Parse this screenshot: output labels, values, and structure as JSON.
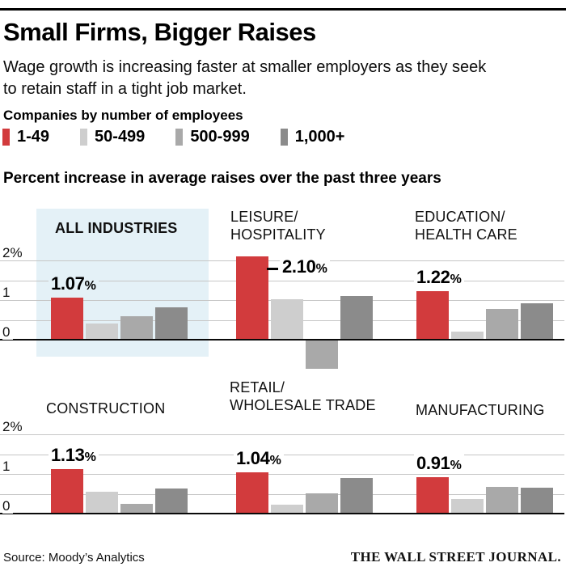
{
  "header": {
    "title": "Small Firms, Bigger Raises",
    "subtitle_line1": "Wage growth is increasing faster at smaller employers as they seek",
    "subtitle_line2": "to retain staff in a tight job market.",
    "legend_title": "Companies by number of employees",
    "axis_title": "Percent increase in average raises over the past three years"
  },
  "legend": [
    {
      "label": "1-49",
      "color": "#d23b3d"
    },
    {
      "label": "50-499",
      "color": "#cecece"
    },
    {
      "label": "500-999",
      "color": "#a9a9a9"
    },
    {
      "label": "1,000+",
      "color": "#8b8b8b"
    }
  ],
  "chart_data": {
    "type": "bar",
    "title": "Percent increase in average raises over the past three years",
    "categories": [
      "1-49",
      "50-499",
      "500-999",
      "1,000+"
    ],
    "series_colors": [
      "#d23b3d",
      "#cecece",
      "#a9a9a9",
      "#8b8b8b"
    ],
    "yticks": [
      "2%",
      "1",
      "0"
    ],
    "ytick_values": [
      2,
      1,
      0
    ],
    "gridline_values": [
      2,
      1.5,
      1,
      0.5,
      0
    ],
    "ylim": [
      -0.75,
      2.3
    ],
    "highlight_color": "#e4f1f7",
    "panels": [
      {
        "name_lines": [
          "ALL INDUSTRIES"
        ],
        "bold_label": true,
        "highlighted": true,
        "row": 0,
        "col": 0,
        "values": [
          1.07,
          0.41,
          0.6,
          0.82
        ],
        "callout": "1.07%",
        "callout_position": "above"
      },
      {
        "name_lines": [
          "LEISURE/",
          "HOSPITALITY"
        ],
        "row": 0,
        "col": 1,
        "values": [
          2.1,
          1.02,
          -0.71,
          1.1
        ],
        "callout": "2.10%",
        "callout_position": "right"
      },
      {
        "name_lines": [
          "EDUCATION/",
          "HEALTH CARE"
        ],
        "row": 0,
        "col": 2,
        "values": [
          1.22,
          0.2,
          0.77,
          0.92
        ],
        "callout": "1.22%",
        "callout_position": "above"
      },
      {
        "name_lines": [
          "CONSTRUCTION"
        ],
        "row": 1,
        "col": 0,
        "values": [
          1.13,
          0.56,
          0.24,
          0.64
        ],
        "callout": "1.13%",
        "callout_position": "above"
      },
      {
        "name_lines": [
          "RETAIL/",
          "WHOLESALE TRADE"
        ],
        "row": 1,
        "col": 1,
        "values": [
          1.04,
          0.22,
          0.52,
          0.9
        ],
        "callout": "1.04%",
        "callout_position": "above"
      },
      {
        "name_lines": [
          "MANUFACTURING"
        ],
        "row": 1,
        "col": 2,
        "values": [
          0.91,
          0.37,
          0.68,
          0.66
        ],
        "callout": "0.91%",
        "callout_position": "above"
      }
    ]
  },
  "footer": {
    "source": "Source: Moody’s Analytics",
    "brand": "THE WALL STREET JOURNAL."
  }
}
